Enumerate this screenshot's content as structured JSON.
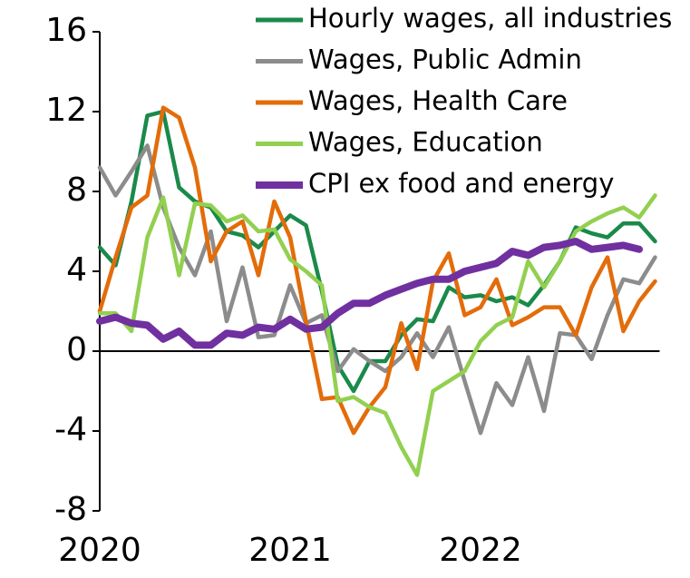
{
  "chart_data": {
    "type": "line",
    "categories": [
      "2020",
      null,
      null,
      null,
      null,
      null,
      null,
      null,
      null,
      null,
      null,
      null,
      "2021",
      null,
      null,
      null,
      null,
      null,
      null,
      null,
      null,
      null,
      null,
      null,
      "2022",
      null,
      null,
      null,
      null,
      null,
      null,
      null,
      null,
      null,
      null,
      null
    ],
    "series": [
      {
        "name": "Hourly wages, all industries",
        "color": "#1a8a4a",
        "values": [
          5.2,
          4.3,
          7.5,
          11.8,
          12.0,
          8.2,
          7.5,
          7.2,
          6.0,
          5.8,
          5.2,
          6.0,
          6.8,
          6.3,
          3.0,
          -0.7,
          -2.0,
          -0.5,
          -0.5,
          0.8,
          1.6,
          1.5,
          3.2,
          2.7,
          2.8,
          2.5,
          2.7,
          2.3,
          3.3,
          4.5,
          6.2,
          5.9,
          5.7,
          6.4,
          6.4,
          5.5
        ]
      },
      {
        "name": "Wages, Public Admin",
        "color": "#8c8c8c",
        "values": [
          9.2,
          7.8,
          9.0,
          10.3,
          7.2,
          5.2,
          3.8,
          6.0,
          1.5,
          4.2,
          0.7,
          0.8,
          3.3,
          1.4,
          1.8,
          -1.0,
          0.1,
          -0.5,
          -1.0,
          -0.3,
          0.9,
          -0.3,
          1.2,
          -1.5,
          -4.1,
          -1.6,
          -2.7,
          -0.3,
          -3.0,
          0.9,
          0.8,
          -0.4,
          1.8,
          3.6,
          3.4,
          4.7
        ]
      },
      {
        "name": "Wages, Health Care",
        "color": "#e36c0a",
        "values": [
          2.0,
          4.7,
          7.2,
          7.8,
          12.2,
          11.7,
          9.2,
          4.5,
          6.0,
          6.5,
          3.8,
          7.5,
          5.7,
          1.5,
          -2.4,
          -2.3,
          -4.1,
          -2.8,
          -1.8,
          1.4,
          -0.9,
          3.5,
          4.9,
          1.8,
          2.2,
          3.6,
          1.3,
          1.7,
          2.2,
          2.2,
          0.8,
          3.2,
          4.7,
          1.0,
          2.5,
          3.5
        ]
      },
      {
        "name": "Wages, Education",
        "color": "#92d050",
        "values": [
          1.9,
          1.9,
          1.0,
          5.7,
          7.7,
          3.8,
          7.4,
          7.3,
          6.5,
          6.8,
          6.0,
          6.1,
          4.6,
          4.0,
          3.3,
          -2.5,
          -2.3,
          -2.8,
          -3.1,
          -4.8,
          -6.2,
          -2.0,
          -1.5,
          -1.0,
          0.5,
          1.3,
          1.7,
          4.5,
          3.2,
          4.5,
          6.0,
          6.5,
          6.9,
          7.2,
          6.7,
          7.8
        ]
      },
      {
        "name": "CPI ex food and energy",
        "color": "#7030a0",
        "values": [
          1.5,
          1.7,
          1.4,
          1.3,
          0.6,
          1.0,
          0.3,
          0.3,
          0.9,
          0.8,
          1.2,
          1.1,
          1.6,
          1.1,
          1.2,
          1.9,
          2.4,
          2.4,
          2.8,
          3.1,
          3.4,
          3.6,
          3.6,
          4.0,
          4.2,
          4.4,
          5.0,
          4.8,
          5.2,
          5.3,
          5.5,
          5.1,
          5.2,
          5.3,
          5.1,
          null
        ]
      }
    ],
    "ylim": [
      -8,
      16
    ],
    "yticks": [
      -8,
      -4,
      0,
      4,
      8,
      12,
      16
    ],
    "legend": "top-right"
  }
}
